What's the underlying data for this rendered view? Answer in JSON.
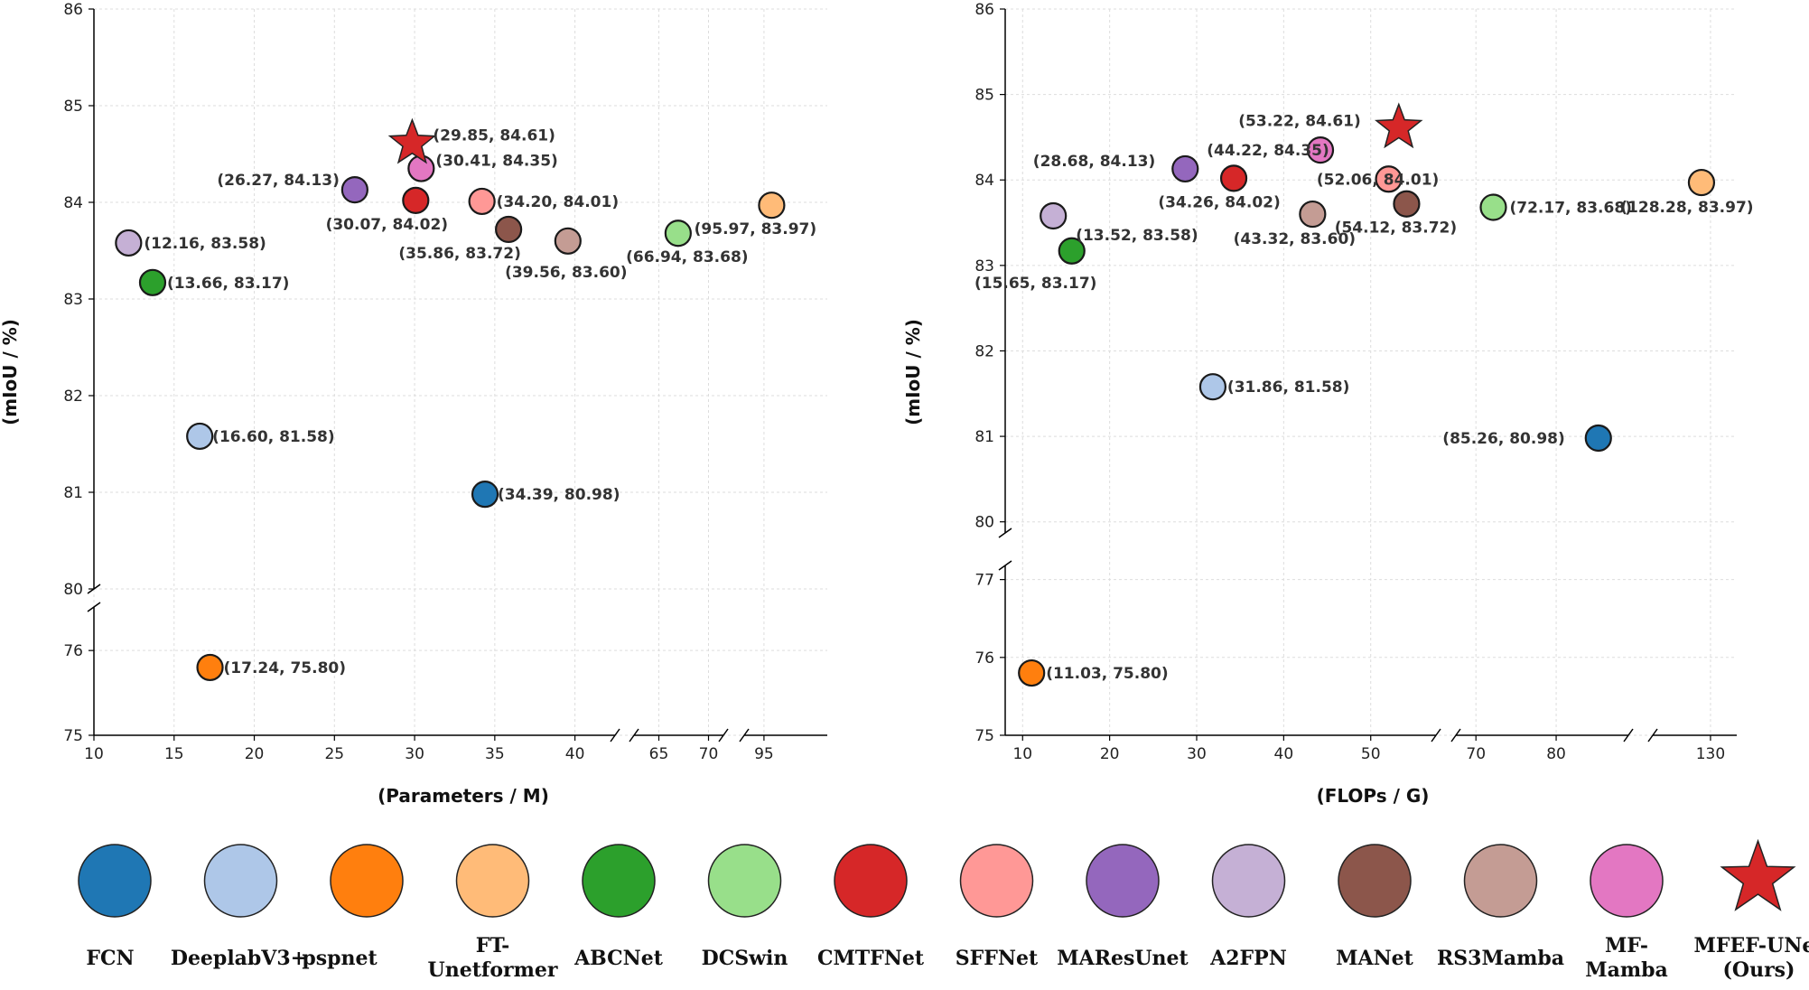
{
  "colors": {
    "FCN": "#1f77b4",
    "DeeplabV3+": "#aec7e8",
    "pspnet": "#ff7f0e",
    "FT-Unetformer": "#ffbb78",
    "ABCNet": "#2ca02c",
    "DCSwin": "#98df8a",
    "CMTFNet": "#d62728",
    "SFFNet": "#ff9896",
    "MAResUnet": "#9467bd",
    "A2FPN": "#c5b0d5",
    "MANet": "#8c564b",
    "RS3Mamba": "#c49c94",
    "MF-Mamba": "#e377c2",
    "MFEF-UNet": "#d62728",
    "highlight_label": "#d62728"
  },
  "legend": [
    {
      "model": "FCN",
      "lines": [
        "FCN"
      ],
      "marker": "circle"
    },
    {
      "model": "DeeplabV3+",
      "lines": [
        "DeeplabV3+"
      ],
      "marker": "circle"
    },
    {
      "model": "pspnet",
      "lines": [
        "pspnet"
      ],
      "marker": "circle"
    },
    {
      "model": "FT-Unetformer",
      "lines": [
        "FT-",
        "Unetformer"
      ],
      "marker": "circle"
    },
    {
      "model": "ABCNet",
      "lines": [
        "ABCNet"
      ],
      "marker": "circle"
    },
    {
      "model": "DCSwin",
      "lines": [
        "DCSwin"
      ],
      "marker": "circle"
    },
    {
      "model": "CMTFNet",
      "lines": [
        "CMTFNet"
      ],
      "marker": "circle"
    },
    {
      "model": "SFFNet",
      "lines": [
        "SFFNet"
      ],
      "marker": "circle"
    },
    {
      "model": "MAResUnet",
      "lines": [
        "MAResUnet"
      ],
      "marker": "circle"
    },
    {
      "model": "A2FPN",
      "lines": [
        "A2FPN"
      ],
      "marker": "circle"
    },
    {
      "model": "MANet",
      "lines": [
        "MANet"
      ],
      "marker": "circle"
    },
    {
      "model": "RS3Mamba",
      "lines": [
        "RS3Mamba"
      ],
      "marker": "circle"
    },
    {
      "model": "MF-Mamba",
      "lines": [
        "MF-",
        "Mamba"
      ],
      "marker": "circle"
    },
    {
      "model": "MFEF-UNet",
      "lines": [
        "MFEF-UNet",
        "(Ours)"
      ],
      "marker": "star"
    }
  ],
  "chart_data": [
    {
      "type": "scatter",
      "title": "",
      "xlabel": "(Parameters / M)",
      "ylabel": "(mIoU / %)",
      "x_segments": [
        {
          "range": [
            10,
            42.5
          ],
          "ticks": [
            "10",
            "15",
            "20",
            "25",
            "30",
            "35",
            "40"
          ]
        },
        {
          "range": [
            62.5,
            71.5
          ],
          "ticks": [
            "65",
            "70"
          ]
        },
        {
          "range": [
            92.5,
            103
          ],
          "ticks": [
            "95"
          ]
        }
      ],
      "y_segments": [
        {
          "range": [
            75,
            76.3
          ],
          "ticks": [
            "75",
            "76"
          ]
        },
        {
          "range": [
            80,
            86
          ],
          "ticks": [
            "80",
            "81",
            "82",
            "83",
            "84",
            "85",
            "86"
          ]
        }
      ],
      "grid": true,
      "points": [
        {
          "model": "FCN",
          "x": 34.39,
          "y": 80.98,
          "label": "(34.39, 80.98)"
        },
        {
          "model": "DeeplabV3+",
          "x": 16.6,
          "y": 81.58,
          "label": "(16.60, 81.58)"
        },
        {
          "model": "pspnet",
          "x": 17.24,
          "y": 75.8,
          "label": "(17.24, 75.80)"
        },
        {
          "model": "FT-Unetformer",
          "x": 95.97,
          "y": 83.97,
          "label": "(95.97, 83.97)"
        },
        {
          "model": "ABCNet",
          "x": 13.66,
          "y": 83.17,
          "label": "(13.66, 83.17)"
        },
        {
          "model": "DCSwin",
          "x": 66.94,
          "y": 83.68,
          "label": "(66.94, 83.68)"
        },
        {
          "model": "CMTFNet",
          "x": 30.07,
          "y": 84.02,
          "label": "(30.07, 84.02)"
        },
        {
          "model": "SFFNet",
          "x": 34.2,
          "y": 84.01,
          "label": "(34.20, 84.01)"
        },
        {
          "model": "MAResUnet",
          "x": 26.27,
          "y": 84.13,
          "label": "(26.27, 84.13)"
        },
        {
          "model": "A2FPN",
          "x": 12.16,
          "y": 83.58,
          "label": "(12.16, 83.58)"
        },
        {
          "model": "MANet",
          "x": 35.86,
          "y": 83.72,
          "label": "(35.86, 83.72)"
        },
        {
          "model": "RS3Mamba",
          "x": 39.56,
          "y": 83.6,
          "label": "(39.56, 83.60)"
        },
        {
          "model": "MF-Mamba",
          "x": 30.41,
          "y": 84.35,
          "label": "(30.41, 84.35)"
        },
        {
          "model": "MFEF-UNet",
          "x": 29.85,
          "y": 84.61,
          "label": "(29.85, 84.61)",
          "highlight": true
        }
      ]
    },
    {
      "type": "scatter",
      "title": "",
      "xlabel": "(FLOPs / G)",
      "ylabel": "(mIoU / %)",
      "x_segments": [
        {
          "range": [
            8,
            57.5
          ],
          "ticks": [
            "10",
            "20",
            "30",
            "40",
            "50"
          ]
        },
        {
          "range": [
            67.5,
            89
          ],
          "ticks": [
            "70",
            "80"
          ]
        },
        {
          "range": [
            119,
            135
          ],
          "ticks": [
            "130"
          ]
        }
      ],
      "y_segments": [
        {
          "range": [
            75,
            77.1
          ],
          "ticks": [
            "75",
            "76",
            "77"
          ]
        },
        {
          "range": [
            79.5,
            86
          ],
          "ticks": [
            "80",
            "81",
            "82",
            "83",
            "84",
            "85",
            "86"
          ]
        }
      ],
      "grid": true,
      "points": [
        {
          "model": "FCN",
          "x": 85.26,
          "y": 80.98,
          "label": "(85.26, 80.98)"
        },
        {
          "model": "DeeplabV3+",
          "x": 31.86,
          "y": 81.58,
          "label": "(31.86, 81.58)"
        },
        {
          "model": "pspnet",
          "x": 11.03,
          "y": 75.8,
          "label": "(11.03, 75.80)"
        },
        {
          "model": "FT-Unetformer",
          "x": 128.28,
          "y": 83.97,
          "label": "(128.28, 83.97)"
        },
        {
          "model": "ABCNet",
          "x": 15.65,
          "y": 83.17,
          "label": "(15.65, 83.17)"
        },
        {
          "model": "DCSwin",
          "x": 72.17,
          "y": 83.68,
          "label": "(72.17, 83.68)"
        },
        {
          "model": "CMTFNet",
          "x": 34.26,
          "y": 84.02,
          "label": "(34.26, 84.02)"
        },
        {
          "model": "SFFNet",
          "x": 52.06,
          "y": 84.01,
          "label": "(52.06, 84.01)"
        },
        {
          "model": "MAResUnet",
          "x": 28.68,
          "y": 84.13,
          "label": "(28.68, 84.13)"
        },
        {
          "model": "A2FPN",
          "x": 13.52,
          "y": 83.58,
          "label": "(13.52, 83.58)"
        },
        {
          "model": "MANet",
          "x": 54.12,
          "y": 83.72,
          "label": "(54.12, 83.72)"
        },
        {
          "model": "RS3Mamba",
          "x": 43.32,
          "y": 83.6,
          "label": "(43.32, 83.60)"
        },
        {
          "model": "MF-Mamba",
          "x": 44.22,
          "y": 84.35,
          "label": "(44.22, 84.35)"
        },
        {
          "model": "MFEF-UNet",
          "x": 53.22,
          "y": 84.61,
          "label": "(53.22, 84.61)",
          "highlight": true
        }
      ]
    }
  ]
}
